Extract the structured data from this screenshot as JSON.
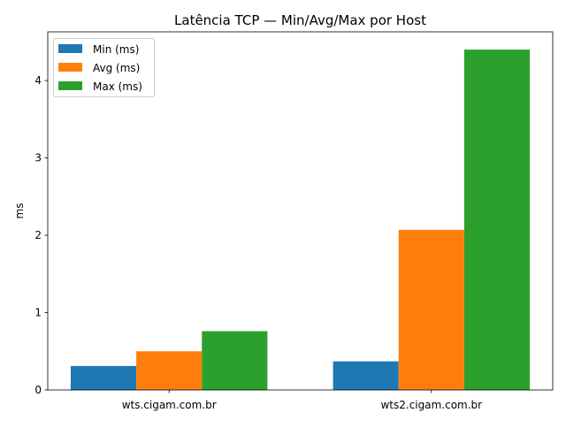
{
  "chart_data": {
    "type": "bar",
    "title": "Latência TCP — Min/Avg/Max por Host",
    "xlabel": "",
    "ylabel": "ms",
    "categories": [
      "wts.cigam.com.br",
      "wts2.cigam.com.br"
    ],
    "series": [
      {
        "name": "Min (ms)",
        "values": [
          0.31,
          0.37
        ],
        "color": "#1f77b4"
      },
      {
        "name": "Avg (ms)",
        "values": [
          0.5,
          2.07
        ],
        "color": "#ff7f0e"
      },
      {
        "name": "Max (ms)",
        "values": [
          0.76,
          4.4
        ],
        "color": "#2ca02c"
      }
    ],
    "ylim": [
      0,
      4.63
    ],
    "yticks": [
      "0",
      "1",
      "2",
      "3",
      "4"
    ],
    "grid": false,
    "legend_position": "top-left"
  }
}
